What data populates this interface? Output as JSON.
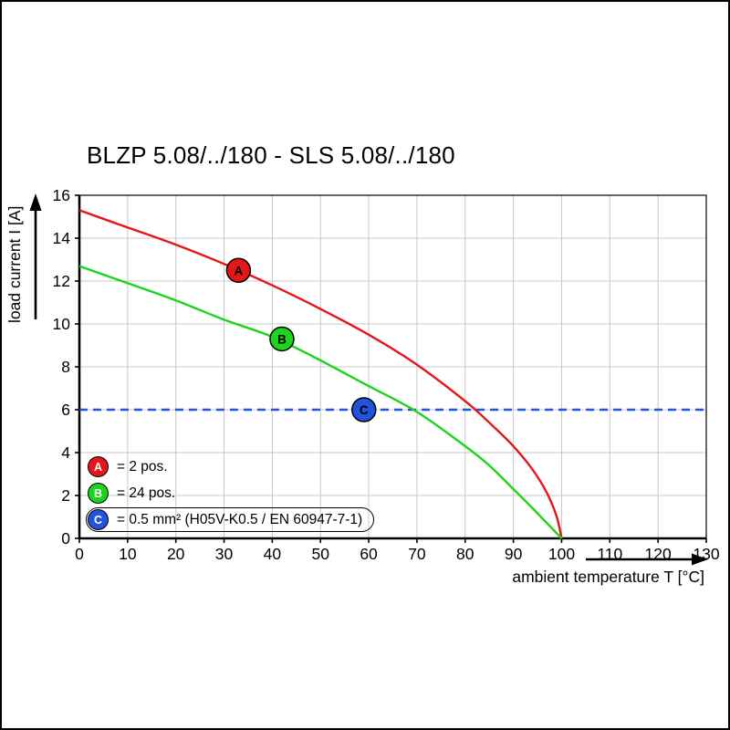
{
  "chart_data": {
    "type": "line",
    "title": "BLZP 5.08/../180 - SLS 5.08/../180",
    "xlabel": "ambient temperature T [°C]",
    "ylabel": "load current I [A]",
    "xlim": [
      0,
      130
    ],
    "ylim": [
      0,
      16
    ],
    "xticks": [
      0,
      10,
      20,
      30,
      40,
      50,
      60,
      70,
      80,
      90,
      100,
      110,
      120,
      130
    ],
    "yticks": [
      0,
      2,
      4,
      6,
      8,
      10,
      12,
      14,
      16
    ],
    "grid": true,
    "grid_color": "#c8c8c8",
    "legend_position": "bottom-left-inside",
    "series": [
      {
        "id": "A",
        "legend_label": "= 2 pos.",
        "color": "#e51518",
        "style": "solid",
        "points": [
          [
            0,
            15.3
          ],
          [
            10,
            14.5
          ],
          [
            20,
            13.7
          ],
          [
            30,
            12.8
          ],
          [
            40,
            11.8
          ],
          [
            50,
            10.7
          ],
          [
            60,
            9.5
          ],
          [
            70,
            8.1
          ],
          [
            80,
            6.4
          ],
          [
            85,
            5.4
          ],
          [
            90,
            4.3
          ],
          [
            94,
            3.2
          ],
          [
            97,
            2.1
          ],
          [
            99,
            1.0
          ],
          [
            100,
            0
          ]
        ],
        "marker": {
          "x": 33,
          "y": 12.5
        }
      },
      {
        "id": "B",
        "legend_label": "= 24 pos.",
        "color": "#1bd41b",
        "style": "solid",
        "points": [
          [
            0,
            12.7
          ],
          [
            10,
            11.9
          ],
          [
            20,
            11.1
          ],
          [
            30,
            10.2
          ],
          [
            40,
            9.4
          ],
          [
            50,
            8.3
          ],
          [
            60,
            7.1
          ],
          [
            70,
            5.9
          ],
          [
            80,
            4.3
          ],
          [
            85,
            3.4
          ],
          [
            90,
            2.3
          ],
          [
            94,
            1.4
          ],
          [
            97,
            0.7
          ],
          [
            100,
            0
          ]
        ],
        "marker": {
          "x": 42,
          "y": 9.3
        }
      },
      {
        "id": "C",
        "legend_label": "= 0.5 mm² (H05V-K0.5 / EN 60947-7-1)",
        "color": "#2153dc",
        "style": "dashed",
        "points": [
          [
            0,
            6
          ],
          [
            130,
            6
          ]
        ],
        "marker": {
          "x": 59,
          "y": 6
        }
      }
    ]
  }
}
